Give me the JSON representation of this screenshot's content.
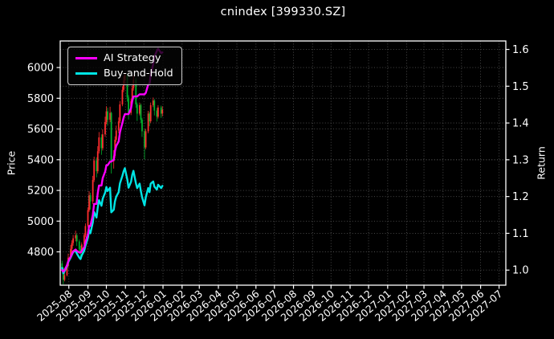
{
  "header": {
    "title": "cnindex [399330.SZ]"
  },
  "legend": {
    "items": [
      {
        "label": "AI Strategy",
        "color": "#ff00ff"
      },
      {
        "label": "Buy-and-Hold",
        "color": "#00e5e5"
      }
    ]
  },
  "colors": {
    "background": "#000000",
    "text": "#ffffff",
    "grid": "#5a5a5a",
    "spine": "#ffffff",
    "up_candle": "#ff2e2e",
    "down_candle": "#00b22d",
    "ai_strategy": "#ff00ff",
    "buy_and_hold": "#00e5e5"
  },
  "chart_data": {
    "type": "line+candlestick",
    "title": "cnindex [399330.SZ]",
    "grid": "dotted, both y-axes + monthly x",
    "legend_position": "upper-left",
    "x_axis": {
      "range": [
        "2025-07-18",
        "2027-07-12"
      ],
      "tick_labels": [
        "2025-08",
        "2025-09",
        "2025-10",
        "2025-11",
        "2025-12",
        "2026-01",
        "2026-02",
        "2026-03",
        "2026-04",
        "2026-05",
        "2026-06",
        "2026-07",
        "2026-08",
        "2026-09",
        "2026-10",
        "2026-11",
        "2026-12",
        "2027-01",
        "2027-02",
        "2027-03",
        "2027-04",
        "2027-05",
        "2027-06",
        "2027-07"
      ],
      "tick_rotation_deg": -40
    },
    "left_axis": {
      "label": "Price",
      "ticks": [
        4800,
        5000,
        5200,
        5400,
        5600,
        5800,
        6000
      ],
      "range": [
        4583,
        6173
      ]
    },
    "right_axis": {
      "label": "Return",
      "ticks": [
        1.0,
        1.1,
        1.2,
        1.3,
        1.4,
        1.5,
        1.6
      ],
      "range": [
        0.959,
        1.623
      ]
    },
    "candles": {
      "axis": "price",
      "up_color": "#ff2e2e",
      "down_color": "#00b22d",
      "dates": [
        "2025-07-21",
        "2025-07-23",
        "2025-07-25",
        "2025-07-29",
        "2025-07-31",
        "2025-08-04",
        "2025-08-06",
        "2025-08-08",
        "2025-08-12",
        "2025-08-14",
        "2025-08-18",
        "2025-08-20",
        "2025-08-22",
        "2025-08-26",
        "2025-08-28",
        "2025-09-01",
        "2025-09-03",
        "2025-09-05",
        "2025-09-09",
        "2025-09-11",
        "2025-09-15",
        "2025-09-17",
        "2025-09-19",
        "2025-09-23",
        "2025-09-25",
        "2025-09-29",
        "2025-10-01",
        "2025-10-03",
        "2025-10-07",
        "2025-10-09",
        "2025-10-13",
        "2025-10-15",
        "2025-10-17",
        "2025-10-21",
        "2025-10-23",
        "2025-10-27",
        "2025-10-29",
        "2025-10-31",
        "2025-11-04",
        "2025-11-06",
        "2025-11-10",
        "2025-11-12",
        "2025-11-14",
        "2025-11-18",
        "2025-11-20",
        "2025-11-24",
        "2025-11-26",
        "2025-11-28",
        "2025-12-02",
        "2025-12-04",
        "2025-12-08",
        "2025-12-10",
        "2025-12-12",
        "2025-12-16",
        "2025-12-18",
        "2025-12-22",
        "2025-12-24",
        "2025-12-29",
        "2025-12-31"
      ],
      "open": [
        4725,
        4690,
        4618,
        4648,
        4710,
        4762,
        4820,
        4858,
        4888,
        4908,
        4868,
        4818,
        4798,
        4848,
        4908,
        4968,
        5072,
        5168,
        5128,
        5268,
        5395,
        5325,
        5455,
        5545,
        5475,
        5565,
        5645,
        5715,
        5660,
        5705,
        5390,
        5425,
        5530,
        5590,
        5650,
        5760,
        5855,
        5915,
        5950,
        5805,
        5705,
        5780,
        5865,
        5920,
        5760,
        5700,
        5755,
        5660,
        5585,
        5480,
        5585,
        5700,
        5650,
        5755,
        5785,
        5720,
        5680,
        5740,
        5700
      ],
      "high": [
        4742,
        4700,
        4668,
        4728,
        4788,
        4845,
        4875,
        4910,
        4938,
        4918,
        4880,
        4840,
        4862,
        4922,
        4985,
        5090,
        5195,
        5185,
        5295,
        5420,
        5415,
        5488,
        5580,
        5565,
        5598,
        5680,
        5748,
        5738,
        5745,
        5712,
        5462,
        5552,
        5622,
        5675,
        5782,
        5878,
        5942,
        5962,
        5958,
        5820,
        5798,
        5882,
        5948,
        5932,
        5772,
        5772,
        5765,
        5672,
        5598,
        5600,
        5718,
        5712,
        5772,
        5805,
        5795,
        5738,
        5755,
        5752,
        5748
      ],
      "low": [
        4672,
        4588,
        4608,
        4640,
        4700,
        4752,
        4798,
        4840,
        4868,
        4838,
        4788,
        4768,
        4790,
        4838,
        4895,
        4958,
        5060,
        5075,
        5110,
        5255,
        5285,
        5310,
        5440,
        5432,
        5460,
        5548,
        5630,
        5622,
        5645,
        5310,
        5342,
        5412,
        5515,
        5572,
        5638,
        5748,
        5840,
        5888,
        5778,
        5662,
        5690,
        5768,
        5850,
        5738,
        5652,
        5688,
        5638,
        5548,
        5402,
        5468,
        5572,
        5618,
        5638,
        5742,
        5688,
        5648,
        5668,
        5672,
        5682
      ],
      "close": [
        4690,
        4618,
        4648,
        4710,
        4762,
        4820,
        4858,
        4888,
        4908,
        4868,
        4818,
        4798,
        4848,
        4908,
        4968,
        5072,
        5168,
        5128,
        5268,
        5395,
        5325,
        5455,
        5545,
        5475,
        5565,
        5645,
        5715,
        5660,
        5705,
        5390,
        5425,
        5530,
        5590,
        5650,
        5760,
        5855,
        5915,
        5950,
        5805,
        5705,
        5780,
        5865,
        5920,
        5760,
        5700,
        5755,
        5660,
        5585,
        5480,
        5585,
        5700,
        5650,
        5755,
        5785,
        5720,
        5680,
        5740,
        5700,
        5725
      ]
    },
    "series": [
      {
        "name": "AI Strategy",
        "axis": "return",
        "color": "#ff00ff",
        "line_width": 2.4,
        "dates": [
          "2025-07-21",
          "2025-07-23",
          "2025-07-25",
          "2025-07-29",
          "2025-07-31",
          "2025-08-04",
          "2025-08-06",
          "2025-08-08",
          "2025-08-12",
          "2025-08-14",
          "2025-08-18",
          "2025-08-20",
          "2025-08-22",
          "2025-08-26",
          "2025-08-28",
          "2025-09-01",
          "2025-09-03",
          "2025-09-05",
          "2025-09-09",
          "2025-09-11",
          "2025-09-15",
          "2025-09-17",
          "2025-09-19",
          "2025-09-23",
          "2025-09-25",
          "2025-09-29",
          "2025-10-01",
          "2025-10-03",
          "2025-10-07",
          "2025-10-09",
          "2025-10-13",
          "2025-10-15",
          "2025-10-17",
          "2025-10-21",
          "2025-10-23",
          "2025-10-27",
          "2025-10-29",
          "2025-10-31",
          "2025-11-04",
          "2025-11-06",
          "2025-11-10",
          "2025-11-12",
          "2025-11-14",
          "2025-11-18",
          "2025-11-20",
          "2025-11-24",
          "2025-11-26",
          "2025-11-28",
          "2025-12-02",
          "2025-12-04",
          "2025-12-08",
          "2025-12-10",
          "2025-12-12",
          "2025-12-16",
          "2025-12-18",
          "2025-12-22",
          "2025-12-24",
          "2025-12-29",
          "2025-12-31"
        ],
        "values": [
          1.0,
          0.996,
          1.0,
          1.013,
          1.024,
          1.036,
          1.044,
          1.051,
          1.056,
          1.052,
          1.048,
          1.048,
          1.052,
          1.062,
          1.075,
          1.098,
          1.12,
          1.12,
          1.15,
          1.18,
          1.18,
          1.21,
          1.23,
          1.23,
          1.25,
          1.268,
          1.285,
          1.285,
          1.295,
          1.295,
          1.3,
          1.324,
          1.338,
          1.35,
          1.375,
          1.4,
          1.415,
          1.424,
          1.424,
          1.424,
          1.44,
          1.46,
          1.472,
          1.472,
          1.472,
          1.478,
          1.478,
          1.478,
          1.478,
          1.482,
          1.505,
          1.505,
          1.53,
          1.56,
          1.58,
          1.596,
          1.602,
          1.59,
          1.592
        ]
      },
      {
        "name": "Buy-and-Hold",
        "axis": "return",
        "color": "#00e5e5",
        "line_width": 2.4,
        "dates": [
          "2025-07-21",
          "2025-07-23",
          "2025-07-25",
          "2025-07-29",
          "2025-07-31",
          "2025-08-04",
          "2025-08-06",
          "2025-08-08",
          "2025-08-12",
          "2025-08-14",
          "2025-08-18",
          "2025-08-20",
          "2025-08-22",
          "2025-08-26",
          "2025-08-28",
          "2025-09-01",
          "2025-09-03",
          "2025-09-05",
          "2025-09-09",
          "2025-09-11",
          "2025-09-15",
          "2025-09-17",
          "2025-09-19",
          "2025-09-23",
          "2025-09-25",
          "2025-09-29",
          "2025-10-01",
          "2025-10-03",
          "2025-10-07",
          "2025-10-09",
          "2025-10-13",
          "2025-10-15",
          "2025-10-17",
          "2025-10-21",
          "2025-10-23",
          "2025-10-27",
          "2025-10-29",
          "2025-10-31",
          "2025-11-04",
          "2025-11-06",
          "2025-11-10",
          "2025-11-12",
          "2025-11-14",
          "2025-11-18",
          "2025-11-20",
          "2025-11-24",
          "2025-11-26",
          "2025-11-28",
          "2025-12-02",
          "2025-12-04",
          "2025-12-08",
          "2025-12-10",
          "2025-12-12",
          "2025-12-16",
          "2025-12-18",
          "2025-12-22",
          "2025-12-24",
          "2025-12-29",
          "2025-12-31"
        ],
        "values": [
          1.006,
          0.991,
          0.997,
          1.011,
          1.022,
          1.034,
          1.042,
          1.049,
          1.053,
          1.045,
          1.034,
          1.03,
          1.04,
          1.053,
          1.066,
          1.088,
          1.109,
          1.1,
          1.13,
          1.158,
          1.143,
          1.171,
          1.19,
          1.175,
          1.194,
          1.211,
          1.226,
          1.215,
          1.224,
          1.157,
          1.164,
          1.187,
          1.2,
          1.212,
          1.236,
          1.256,
          1.269,
          1.277,
          1.246,
          1.224,
          1.24,
          1.259,
          1.27,
          1.236,
          1.223,
          1.235,
          1.215,
          1.198,
          1.176,
          1.198,
          1.223,
          1.212,
          1.235,
          1.241,
          1.227,
          1.219,
          1.232,
          1.223,
          1.229
        ]
      }
    ]
  }
}
